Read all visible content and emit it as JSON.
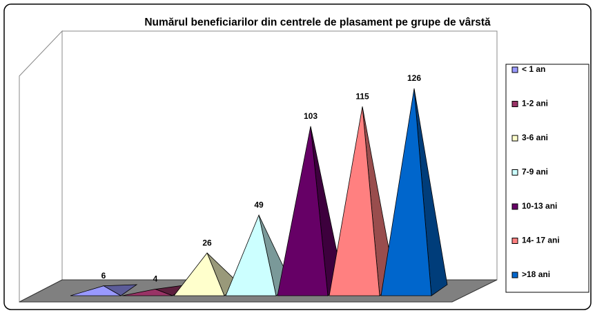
{
  "chart_data": {
    "type": "pyramid3d",
    "title": "Numărul beneficiarilor din centrele de plasament pe grupe de vârstă",
    "series": [
      {
        "name": "< 1 an",
        "color": "#9999ff",
        "values": [
          6
        ]
      },
      {
        "name": "1-2 ani",
        "color": "#993366",
        "values": [
          4
        ]
      },
      {
        "name": "3-6 ani",
        "color": "#ffffcc",
        "values": [
          26
        ]
      },
      {
        "name": "7-9 ani",
        "color": "#ccffff",
        "values": [
          49
        ]
      },
      {
        "name": "10-13 ani",
        "color": "#660066",
        "values": [
          103
        ]
      },
      {
        "name": "14- 17 ani",
        "color": "#ff8080",
        "values": [
          115
        ]
      },
      {
        "name": ">18 ani",
        "color": "#0066cc",
        "values": [
          126
        ]
      }
    ],
    "legend": "right"
  }
}
